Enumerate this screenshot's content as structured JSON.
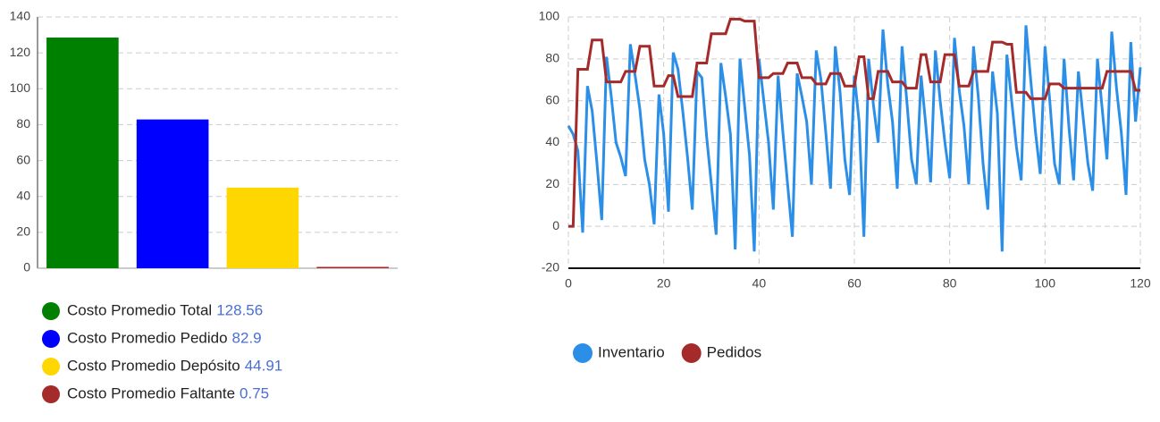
{
  "chart_data": [
    {
      "type": "bar",
      "categories": [
        "Costo Promedio Total",
        "Costo Promedio Pedido",
        "Costo Promedio Depósito",
        "Costo Promedio Faltante"
      ],
      "values": [
        128.56,
        82.9,
        44.91,
        0.75
      ],
      "colors": [
        "#008000",
        "#0000ff",
        "#ffd700",
        "#a52a2a"
      ],
      "ylim": [
        0,
        140
      ],
      "yticks": [
        0,
        20,
        40,
        60,
        80,
        100,
        120,
        140
      ],
      "grid": true
    },
    {
      "type": "line",
      "x": [
        0,
        1,
        2,
        3,
        4,
        5,
        6,
        7,
        8,
        9,
        10,
        11,
        12,
        13,
        14,
        15,
        16,
        17,
        18,
        19,
        20,
        21,
        22,
        23,
        24,
        25,
        26,
        27,
        28,
        29,
        30,
        31,
        32,
        33,
        34,
        35,
        36,
        37,
        38,
        39,
        40,
        41,
        42,
        43,
        44,
        45,
        46,
        47,
        48,
        49,
        50,
        51,
        52,
        53,
        54,
        55,
        56,
        57,
        58,
        59,
        60,
        61,
        62,
        63,
        64,
        65,
        66,
        67,
        68,
        69,
        70,
        71,
        72,
        73,
        74,
        75,
        76,
        77,
        78,
        79,
        80,
        81,
        82,
        83,
        84,
        85,
        86,
        87,
        88,
        89,
        90,
        91,
        92,
        93,
        94,
        95,
        96,
        97,
        98,
        99,
        100,
        101,
        102,
        103,
        104,
        105,
        106,
        107,
        108,
        109,
        110,
        111,
        112,
        113,
        114,
        115,
        116,
        117,
        118,
        119,
        120
      ],
      "series": [
        {
          "name": "Inventario",
          "color": "#2b8fe8",
          "values": [
            48,
            44,
            36,
            -3,
            67,
            55,
            30,
            3,
            81,
            62,
            40,
            33,
            24,
            87,
            72,
            56,
            32,
            20,
            1,
            63,
            44,
            7,
            83,
            75,
            55,
            33,
            8,
            74,
            71,
            43,
            20,
            -4,
            78,
            62,
            44,
            -11,
            80,
            57,
            34,
            -12,
            80,
            60,
            40,
            8,
            72,
            45,
            20,
            -5,
            73,
            62,
            50,
            20,
            84,
            70,
            45,
            18,
            86,
            64,
            32,
            15,
            72,
            50,
            -5,
            80,
            58,
            40,
            94,
            68,
            50,
            18,
            86,
            60,
            32,
            20,
            72,
            48,
            21,
            84,
            60,
            40,
            23,
            90,
            65,
            48,
            20,
            86,
            62,
            30,
            8,
            74,
            54,
            -12,
            82,
            60,
            38,
            22,
            96,
            70,
            45,
            25,
            86,
            60,
            30,
            20,
            80,
            48,
            22,
            74,
            52,
            30,
            17,
            80,
            56,
            32,
            93,
            66,
            45,
            15,
            88,
            50,
            76
          ]
        },
        {
          "name": "Pedidos",
          "color": "#a52a2a",
          "values": [
            0,
            0,
            75,
            75,
            75,
            89,
            89,
            89,
            69,
            69,
            69,
            69,
            74,
            74,
            74,
            86,
            86,
            86,
            67,
            67,
            67,
            72,
            72,
            62,
            62,
            62,
            62,
            78,
            78,
            78,
            92,
            92,
            92,
            92,
            99,
            99,
            99,
            98,
            98,
            98,
            71,
            71,
            71,
            73,
            73,
            73,
            78,
            78,
            78,
            71,
            71,
            71,
            68,
            68,
            68,
            73,
            73,
            73,
            67,
            67,
            67,
            81,
            81,
            61,
            61,
            74,
            74,
            74,
            69,
            69,
            69,
            66,
            66,
            66,
            82,
            82,
            69,
            69,
            69,
            82,
            82,
            82,
            67,
            67,
            67,
            74,
            74,
            74,
            74,
            88,
            88,
            88,
            87,
            87,
            64,
            64,
            64,
            61,
            61,
            61,
            61,
            68,
            68,
            68,
            66,
            66,
            66,
            66,
            66,
            66,
            66,
            66,
            66,
            74,
            74,
            74,
            74,
            74,
            74,
            65,
            65
          ]
        }
      ],
      "xlim": [
        0,
        120
      ],
      "xticks": [
        0,
        20,
        40,
        60,
        80,
        100,
        120
      ],
      "ylim": [
        -20,
        100
      ],
      "yticks": [
        -20,
        0,
        20,
        40,
        60,
        80,
        100
      ],
      "grid": true
    }
  ]
}
